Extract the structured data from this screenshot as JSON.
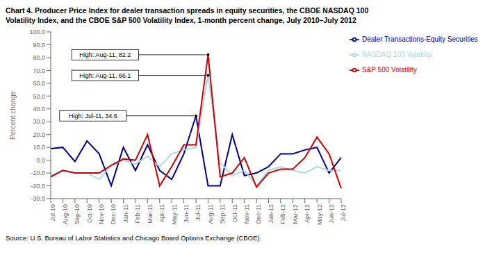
{
  "chart_data": {
    "type": "line",
    "title": "Chart 4. Producer Price Index for dealer transaction spreads in equity securities, the CBOE NASDAQ 100",
    "subtitle": "Volatility Index, and the CBOE S&P 500 Volatility Index,  1-month percent change, July 2010–July 2012",
    "y_label": "Percent change",
    "source": "Source:  U.S. Bureau of Labor Statistics and Chicago Board Options Exchange (CBOE).",
    "categories": [
      "Jul-10",
      "Aug-10",
      "Sep-10",
      "Oct-10",
      "Nov-10",
      "Dec-10",
      "Jan-11",
      "Feb-11",
      "Mar-11",
      "Apr-11",
      "May-11",
      "Jun-11",
      "Jul-11",
      "Aug-11",
      "Sep-11",
      "Oct-11",
      "Nov-11",
      "Dec-11",
      "Jan-12",
      "Feb-12",
      "Mar-12",
      "Apr-12",
      "May-12",
      "Jun-12",
      "Jul-12"
    ],
    "series": [
      {
        "name": "Dealer Transactions-Equity Securities",
        "color": "#00008B",
        "values": [
          9.0,
          10.0,
          -1.0,
          15.0,
          5.0,
          -20.0,
          10.0,
          -8.0,
          12.0,
          -8.0,
          -15.0,
          5.0,
          34.6,
          -20.0,
          -20.0,
          20.0,
          -12.0,
          -10.0,
          -5.0,
          5.0,
          5.0,
          8.0,
          10.0,
          -10.0,
          2.0
        ]
      },
      {
        "name": "NASDAQ 100 Volatility",
        "color": "#ADD8E6",
        "values": [
          -12.0,
          -8.0,
          -10.0,
          -10.0,
          -15.0,
          -4.0,
          0.0,
          -3.0,
          3.0,
          -5.0,
          5.0,
          8.0,
          10.0,
          66.1,
          -2.0,
          -12.0,
          -8.0,
          -20.0,
          -8.0,
          -5.0,
          -8.0,
          -10.0,
          -5.0,
          -8.0,
          -8.0
        ]
      },
      {
        "name": "S&P 500 Volatility",
        "color": "#CC0000",
        "values": [
          -13.0,
          -8.0,
          -10.0,
          -10.0,
          -10.0,
          -4.0,
          1.0,
          0.0,
          20.0,
          -20.0,
          -5.0,
          12.0,
          12.0,
          82.2,
          -13.0,
          -10.0,
          2.0,
          -21.0,
          -10.0,
          -7.0,
          -7.0,
          2.0,
          18.0,
          5.0,
          -22.0
        ]
      }
    ],
    "ylim": [
      -30,
      100
    ],
    "yticks": [
      {
        "value": -30,
        "label": "-30.0"
      },
      {
        "value": -20,
        "label": "-20.0"
      },
      {
        "value": -10,
        "label": "-10.0"
      },
      {
        "value": 0,
        "label": "0.0"
      },
      {
        "value": 10,
        "label": "10.0"
      },
      {
        "value": 20,
        "label": "20.0"
      },
      {
        "value": 30,
        "label": "30.0"
      },
      {
        "value": 40,
        "label": "40.0"
      },
      {
        "value": 50,
        "label": "50.0"
      },
      {
        "value": 60,
        "label": "60.0"
      },
      {
        "value": 70,
        "label": "70.0"
      },
      {
        "value": 80,
        "label": "80.0"
      },
      {
        "value": 90,
        "label": "90.0"
      },
      {
        "value": 100,
        "label": "100.0"
      }
    ],
    "annotations": [
      {
        "text": "High: Aug-11, 82.2",
        "x": "Aug-11",
        "y": 82.2
      },
      {
        "text": "High: Aug-11, 66.1",
        "x": "Aug-11",
        "y": 66.1
      },
      {
        "text": "High: Jul-11, 34.6",
        "x": "Jul-11",
        "y": 34.6
      }
    ],
    "grid": false,
    "legend": "right"
  }
}
